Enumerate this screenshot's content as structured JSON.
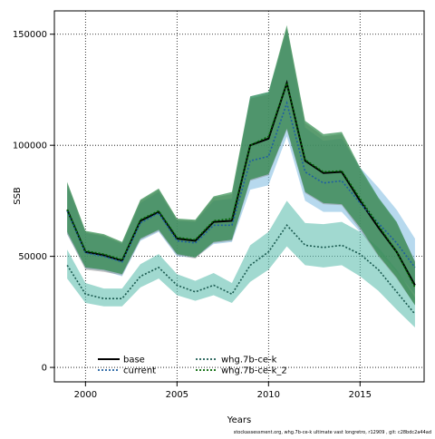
{
  "chart_data": {
    "type": "line",
    "title": "",
    "xlabel": "Years",
    "ylabel": "SSB",
    "footer": "stockassessment.org,  whg.7b-ce-k  ultimate  vast  longretro,  r12909 ,  git:  c28bdc2a44ad",
    "xlim": [
      1998.3,
      2018.5
    ],
    "ylim": [
      -6500,
      160500
    ],
    "xticks": [
      2000,
      2005,
      2010,
      2015
    ],
    "xtick_labels": [
      "2000",
      "2005",
      "2010",
      "2015"
    ],
    "yticks": [
      0,
      50000,
      100000,
      150000
    ],
    "ytick_labels": [
      "0",
      "50000",
      "100000",
      "150000"
    ],
    "grid": true,
    "legend_position": "bottom-left",
    "legend": [
      {
        "label": "base",
        "color": "#000000",
        "dash": "solid"
      },
      {
        "label": "current",
        "color": "#1f5fa0",
        "dash": "dotted"
      },
      {
        "label": "whg.7b-ce-k",
        "color": "#1a5a50",
        "dash": "dotted"
      },
      {
        "label": "whg.7b-ce-k_2",
        "color": "#006400",
        "dash": "dotted"
      }
    ],
    "x": [
      1999,
      2000,
      2001,
      2002,
      2003,
      2004,
      2005,
      2006,
      2007,
      2008,
      2009,
      2010,
      2011,
      2012,
      2013,
      2014,
      2015,
      2016,
      2017,
      2018
    ],
    "series": [
      {
        "name": "base",
        "color": "#000000",
        "values": [
          71000,
          52000,
          50500,
          48000,
          66000,
          70000,
          58000,
          57000,
          65500,
          66000,
          100000,
          103000,
          128000,
          93000,
          87500,
          88000,
          75000,
          63000,
          52000,
          37000
        ],
        "lower": [
          60000,
          44000,
          43000,
          41500,
          57500,
          61500,
          50500,
          49000,
          56000,
          57000,
          84000,
          86500,
          107000,
          78500,
          73500,
          73000,
          62000,
          50000,
          40000,
          28000
        ],
        "upper": [
          83000,
          61000,
          59500,
          56000,
          75000,
          80000,
          66500,
          66000,
          76500,
          78000,
          121000,
          123000,
          153000,
          110000,
          104000,
          105000,
          89000,
          76000,
          65000,
          48000
        ]
      },
      {
        "name": "current",
        "color": "#1f5fa0",
        "values": [
          70500,
          51500,
          50000,
          47500,
          65000,
          69500,
          57000,
          56000,
          64000,
          64000,
          93000,
          95000,
          119000,
          88000,
          83000,
          84000,
          74000,
          65000,
          56000,
          45000
        ],
        "lower": [
          60000,
          44500,
          43500,
          41000,
          57000,
          61000,
          50000,
          49500,
          55500,
          56500,
          80000,
          82000,
          104000,
          75000,
          70000,
          70000,
          61000,
          52000,
          43000,
          33000
        ],
        "upper": [
          82000,
          60500,
          59000,
          55500,
          74000,
          79000,
          66000,
          65500,
          75000,
          76000,
          122000,
          124000,
          152000,
          108000,
          102000,
          103000,
          90000,
          81000,
          71000,
          58000
        ]
      },
      {
        "name": "whg.7b-ce-k",
        "color": "#1a5a50",
        "values": [
          46000,
          33000,
          31000,
          31000,
          41000,
          45000,
          37000,
          34000,
          37000,
          33000,
          46000,
          52000,
          64000,
          55000,
          54000,
          55000,
          51000,
          44000,
          34000,
          24000
        ],
        "lower": [
          40000,
          29000,
          27500,
          27500,
          36000,
          40000,
          32500,
          30000,
          32500,
          29000,
          38500,
          44000,
          54500,
          46000,
          45000,
          46000,
          41000,
          34500,
          26000,
          18000
        ],
        "upper": [
          53000,
          38000,
          35500,
          35500,
          46500,
          51000,
          42000,
          39000,
          42500,
          38000,
          55000,
          61000,
          75000,
          65000,
          64500,
          65500,
          61000,
          54000,
          44000,
          31500
        ]
      },
      {
        "name": "whg.7b-ce-k_2",
        "color": "#006400",
        "values": [
          71000,
          52500,
          51000,
          48500,
          66500,
          70500,
          58500,
          57500,
          66000,
          67000,
          100000,
          104000,
          128000,
          93500,
          88000,
          88500,
          76000,
          64000,
          52000,
          36000
        ],
        "lower": [
          61000,
          45000,
          44000,
          42000,
          58000,
          62000,
          51000,
          49500,
          56500,
          57500,
          84500,
          87000,
          107500,
          79000,
          74000,
          73500,
          63000,
          50500,
          40500,
          28000
        ],
        "upper": [
          83500,
          61500,
          60000,
          56500,
          75500,
          80500,
          67000,
          66500,
          77000,
          79000,
          122000,
          124000,
          154000,
          111000,
          105000,
          106000,
          90000,
          76500,
          65500,
          47500
        ]
      }
    ],
    "band_colors": {
      "base": "#7f7f7f",
      "current": "#87bfe3",
      "whg.7b-ce-k": "#63bfb0",
      "whg.7b-ce-k_2": "#2e8a4a"
    }
  }
}
